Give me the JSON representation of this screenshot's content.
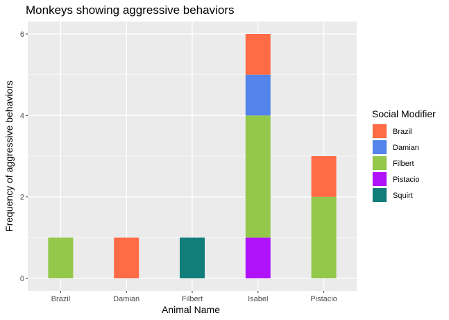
{
  "chart_data": {
    "type": "bar",
    "stacked": true,
    "title": "Monkeys showing aggressive behaviors",
    "xlabel": "Animal Name",
    "ylabel": "Frequency of aggressive behaviors",
    "categories": [
      "Brazil",
      "Damian",
      "Filbert",
      "Isabel",
      "Pistacio"
    ],
    "ylim": [
      0,
      6.3
    ],
    "yticks": [
      0,
      2,
      4,
      6
    ],
    "grid": true,
    "legend": {
      "title": "Social Modifier",
      "placement": "right"
    },
    "series": [
      {
        "name": "Brazil",
        "color": "#FF6B45",
        "values": [
          0,
          1,
          0,
          1,
          1
        ]
      },
      {
        "name": "Damian",
        "color": "#5384EC",
        "values": [
          0,
          0,
          0,
          1,
          0
        ]
      },
      {
        "name": "Filbert",
        "color": "#94C84A",
        "values": [
          1,
          0,
          0,
          3,
          2
        ]
      },
      {
        "name": "Pistacio",
        "color": "#B012FB",
        "values": [
          0,
          0,
          0,
          1,
          0
        ]
      },
      {
        "name": "Squirt",
        "color": "#117E7B",
        "values": [
          0,
          0,
          1,
          0,
          0
        ]
      }
    ]
  }
}
